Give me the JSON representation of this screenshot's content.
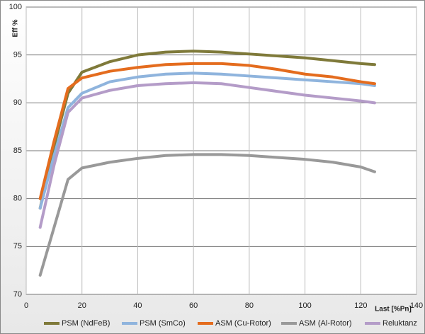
{
  "chart_data": {
    "type": "line",
    "x_label": "Last [%Pn]",
    "y_label": "Eff %",
    "x": [
      5,
      10,
      15,
      20,
      30,
      40,
      50,
      60,
      70,
      80,
      90,
      100,
      110,
      120,
      125
    ],
    "series": [
      {
        "name": "PSM (NdFeB)",
        "color": "#7f7a3a",
        "values": [
          79,
          85.5,
          91,
          93.2,
          94.3,
          95,
          95.3,
          95.4,
          95.3,
          95.1,
          94.9,
          94.7,
          94.4,
          94.1,
          94.0
        ]
      },
      {
        "name": "PSM (SmCo)",
        "color": "#8fb4dd",
        "values": [
          79,
          84.5,
          89.5,
          91,
          92.2,
          92.7,
          93.0,
          93.1,
          93.0,
          92.8,
          92.6,
          92.4,
          92.2,
          92.0,
          91.8
        ]
      },
      {
        "name": "ASM (Cu-Rotor)",
        "color": "#e46c1e",
        "values": [
          80,
          86,
          91.5,
          92.6,
          93.3,
          93.7,
          94.0,
          94.1,
          94.1,
          93.9,
          93.5,
          93.0,
          92.7,
          92.2,
          92.0
        ]
      },
      {
        "name": "ASM (Al-Rotor)",
        "color": "#999999",
        "values": [
          72,
          77,
          82,
          83.2,
          83.8,
          84.2,
          84.5,
          84.6,
          84.6,
          84.5,
          84.3,
          84.1,
          83.8,
          83.3,
          82.8
        ]
      },
      {
        "name": "Reluktanz",
        "color": "#b49cc8",
        "values": [
          77,
          83.5,
          89,
          90.5,
          91.3,
          91.8,
          92.0,
          92.1,
          92.0,
          91.6,
          91.2,
          90.8,
          90.5,
          90.2,
          90.0
        ]
      }
    ],
    "xlim": [
      0,
      140
    ],
    "xticks": [
      0,
      20,
      40,
      60,
      80,
      100,
      120,
      140
    ],
    "ylim": [
      70,
      100
    ],
    "yticks": [
      70,
      75,
      80,
      85,
      90,
      95,
      100
    ],
    "grid": true,
    "legend": "bottom"
  }
}
